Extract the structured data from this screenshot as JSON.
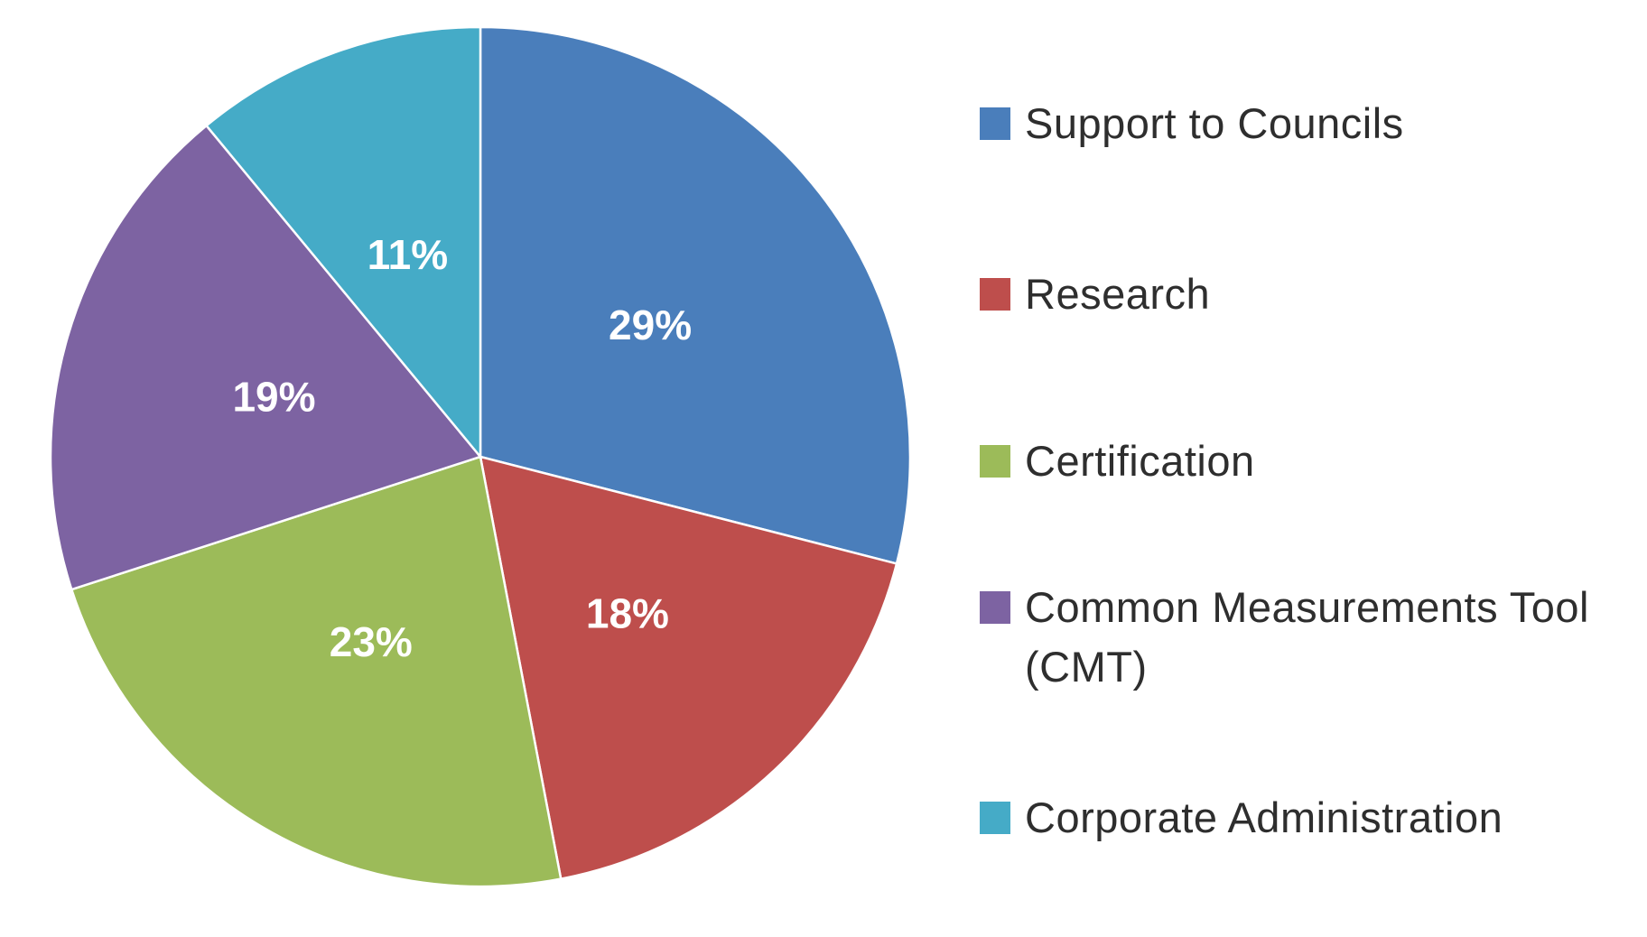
{
  "figure": {
    "background_color": "#FFFFFF"
  },
  "chart_data": {
    "type": "pie",
    "slices": [
      {
        "label": "Support to Councils",
        "value_pct": 29,
        "percent_label": "29%",
        "color": "#4A7EBB"
      },
      {
        "label": "Research",
        "value_pct": 18,
        "percent_label": "18%",
        "color": "#BE4E4C"
      },
      {
        "label": "Certification",
        "value_pct": 23,
        "percent_label": "23%",
        "color": "#9CBB59"
      },
      {
        "label": "Common Measurements Tool (CMT)",
        "value_pct": 19,
        "percent_label": "19%",
        "color": "#7D63A2"
      },
      {
        "label": "Corporate Administration",
        "value_pct": 11,
        "percent_label": "11%",
        "color": "#45ABC7"
      }
    ],
    "start_angle_deg": 0,
    "direction": "clockwise",
    "data_label_style": "percent-inside",
    "data_label_radius_fraction": 0.5,
    "data_label_color": "#FFFFFF",
    "slice_border_color": "#FFFFFF",
    "legend_position": "right",
    "legend_text_color": "#2E2E2E",
    "grid": false,
    "title": ""
  }
}
